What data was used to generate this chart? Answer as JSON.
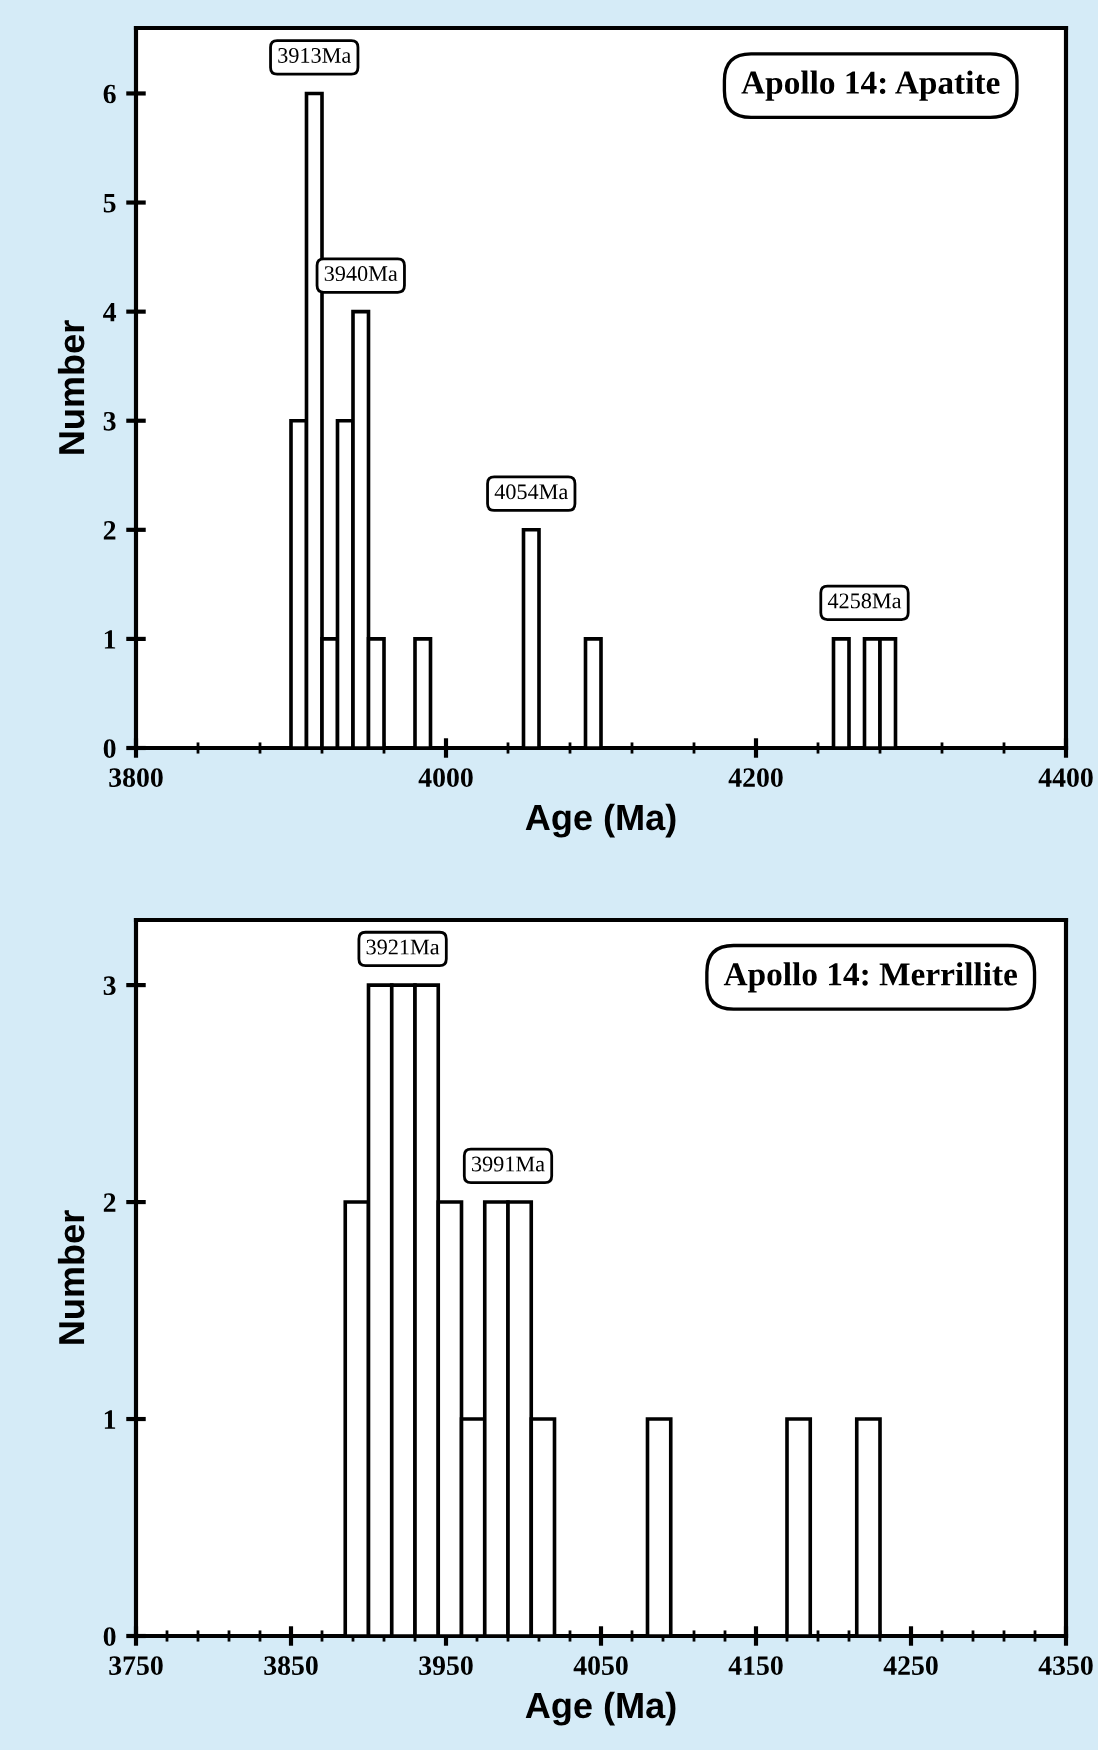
{
  "chart_data": [
    {
      "type": "histogram",
      "title": "Apollo 14: Apatite",
      "xlabel": "Age (Ma)",
      "ylabel": "Number",
      "color": "#ffffff",
      "bins": [
        3900,
        3910,
        3920,
        3930,
        3940,
        3950,
        3960,
        3970,
        3980,
        3990,
        4000,
        4010,
        4020,
        4030,
        4040,
        4050,
        4060,
        4070,
        4080,
        4090,
        4100,
        4110,
        4120,
        4130,
        4140,
        4150,
        4160,
        4170,
        4180,
        4190,
        4200,
        4210,
        4220,
        4230,
        4240,
        4250,
        4260,
        4270,
        4280,
        4290
      ],
      "values": [
        3,
        6,
        1,
        3,
        4,
        1,
        0,
        0,
        1,
        0,
        0,
        0,
        0,
        0,
        0,
        2,
        0,
        0,
        0,
        1,
        0,
        0,
        0,
        0,
        0,
        0,
        0,
        0,
        0,
        0,
        0,
        0,
        0,
        0,
        0,
        1,
        0,
        1,
        1
      ],
      "xlim": [
        3800,
        4400
      ],
      "xticks": [
        3800,
        {
          "value": 3840,
          "label": null
        },
        {
          "value": 3880,
          "label": null
        },
        {
          "value": 3920,
          "label": null
        },
        {
          "value": 3960,
          "label": null
        },
        4000,
        {
          "value": 4040,
          "label": null
        },
        {
          "value": 4080,
          "label": null
        },
        {
          "value": 4120,
          "label": null
        },
        {
          "value": 4160,
          "label": null
        },
        4200,
        {
          "value": 4240,
          "label": null
        },
        {
          "value": 4280,
          "label": null
        },
        {
          "value": 4320,
          "label": null
        },
        {
          "value": 4360,
          "label": null
        },
        4400
      ],
      "ylim": [
        0,
        6.6
      ],
      "yticks": [
        0,
        1,
        2,
        3,
        4,
        5,
        6
      ],
      "annotations": [
        {
          "text": "3913Ma",
          "x": 3915,
          "y": 6
        },
        {
          "text": "3940Ma",
          "x": 3945,
          "y": 4
        },
        {
          "text": "4054Ma",
          "x": 4055,
          "y": 2
        },
        {
          "text": "4258Ma",
          "x": 4270,
          "y": 1
        }
      ]
    },
    {
      "type": "histogram",
      "title": "Apollo 14: Merrillite",
      "xlabel": "Age (Ma)",
      "ylabel": "Number",
      "color": "#ffffff",
      "bins": [
        3885,
        3900,
        3915,
        3930,
        3945,
        3960,
        3975,
        3990,
        4005,
        4020,
        4035,
        4050,
        4065,
        4080,
        4095,
        4110,
        4125,
        4140,
        4155,
        4170,
        4185,
        4200,
        4215,
        4230
      ],
      "values": [
        2,
        3,
        3,
        3,
        2,
        1,
        2,
        2,
        1,
        0,
        0,
        0,
        0,
        1,
        0,
        0,
        0,
        0,
        0,
        1,
        0,
        0,
        1
      ],
      "xlim": [
        3750,
        4350
      ],
      "xticks": [
        3750,
        {
          "value": 3770,
          "label": null
        },
        {
          "value": 3790,
          "label": null
        },
        {
          "value": 3810,
          "label": null
        },
        {
          "value": 3830,
          "label": null
        },
        3850,
        {
          "value": 3870,
          "label": null
        },
        {
          "value": 3890,
          "label": null
        },
        {
          "value": 3910,
          "label": null
        },
        {
          "value": 3930,
          "label": null
        },
        3950,
        {
          "value": 3970,
          "label": null
        },
        {
          "value": 3990,
          "label": null
        },
        {
          "value": 4010,
          "label": null
        },
        {
          "value": 4030,
          "label": null
        },
        4050,
        {
          "value": 4070,
          "label": null
        },
        {
          "value": 4090,
          "label": null
        },
        {
          "value": 4110,
          "label": null
        },
        {
          "value": 4130,
          "label": null
        },
        4150,
        {
          "value": 4170,
          "label": null
        },
        {
          "value": 4190,
          "label": null
        },
        {
          "value": 4210,
          "label": null
        },
        {
          "value": 4230,
          "label": null
        },
        4250,
        {
          "value": 4270,
          "label": null
        },
        {
          "value": 4290,
          "label": null
        },
        {
          "value": 4310,
          "label": null
        },
        {
          "value": 4330,
          "label": null
        },
        4350
      ],
      "ylim": [
        0,
        3.3
      ],
      "yticks": [
        0,
        1,
        2,
        3
      ],
      "annotations": [
        {
          "text": "3921Ma",
          "x": 3922,
          "y": 3
        },
        {
          "text": "3991Ma",
          "x": 3990,
          "y": 2
        }
      ]
    }
  ]
}
